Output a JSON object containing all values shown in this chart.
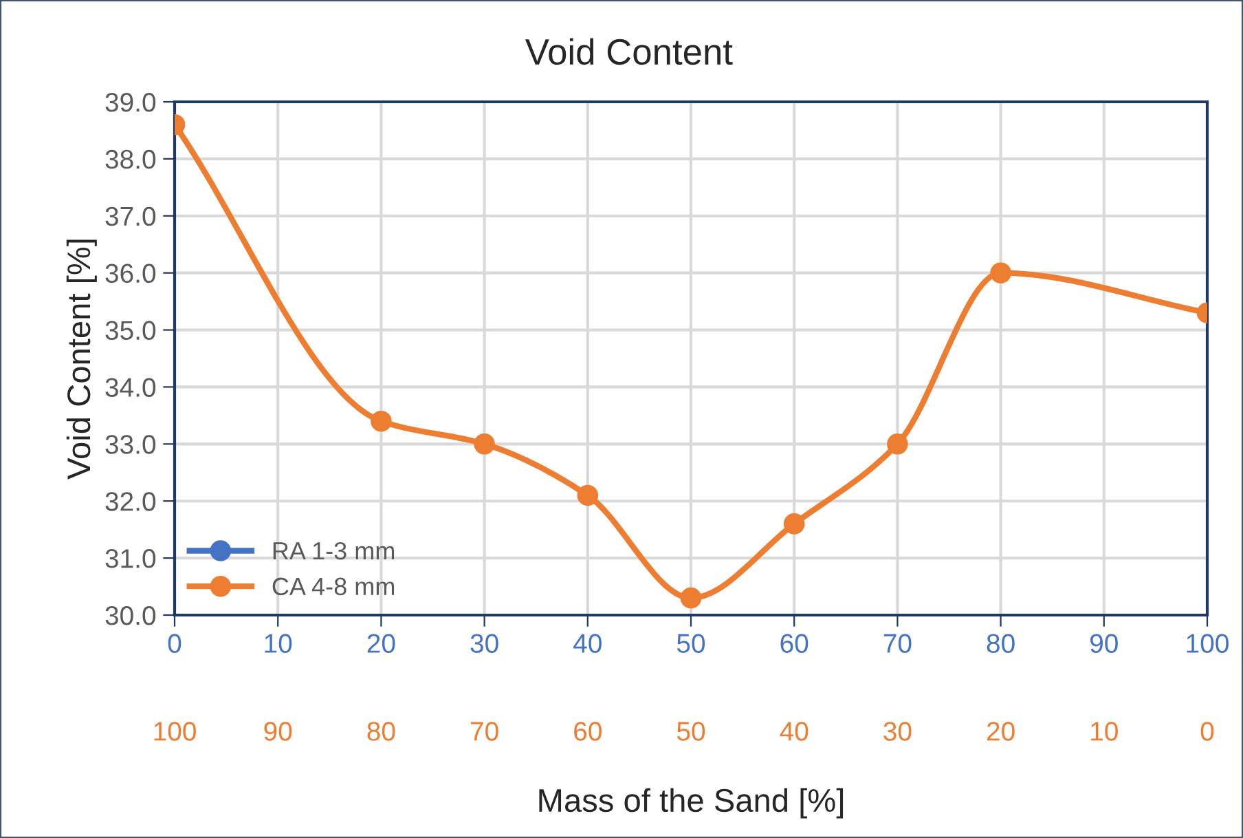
{
  "chart_data": {
    "type": "line",
    "title": "Void Content",
    "xlabel": "Mass of the Sand [%]",
    "ylabel": "Void Content [%]",
    "x": [
      0,
      20,
      30,
      40,
      50,
      60,
      70,
      80,
      100
    ],
    "series": [
      {
        "name": "RA 1-3 mm",
        "color": "#4472c4",
        "values": [
          null,
          null,
          null,
          null,
          null,
          null,
          null,
          null,
          null
        ]
      },
      {
        "name": "CA 4-8 mm",
        "color": "#ed7d31",
        "values": [
          38.6,
          33.4,
          33.0,
          32.1,
          30.3,
          31.6,
          33.0,
          36.0,
          35.3
        ]
      }
    ],
    "xlim": [
      0,
      100
    ],
    "xticks": [
      0,
      10,
      20,
      30,
      40,
      50,
      60,
      70,
      80,
      90,
      100
    ],
    "x2lim": [
      100,
      0
    ],
    "x2ticks": [
      100,
      90,
      80,
      70,
      60,
      50,
      40,
      30,
      20,
      10,
      0
    ],
    "ylim": [
      30,
      39
    ],
    "yticks": [
      {
        "value": 30,
        "label": "30.0"
      },
      {
        "value": 31,
        "label": "31.0"
      },
      {
        "value": 32,
        "label": "32.0"
      },
      {
        "value": 33,
        "label": "33.0"
      },
      {
        "value": 34,
        "label": "34.0"
      },
      {
        "value": 35,
        "label": "35.0"
      },
      {
        "value": 36,
        "label": "36.0"
      },
      {
        "value": 37,
        "label": "37.0"
      },
      {
        "value": 38,
        "label": "38.0"
      },
      {
        "value": 39,
        "label": "39.0"
      }
    ],
    "grid": true,
    "legend": "bottom left",
    "marker": "circle",
    "line_style": "solid"
  }
}
